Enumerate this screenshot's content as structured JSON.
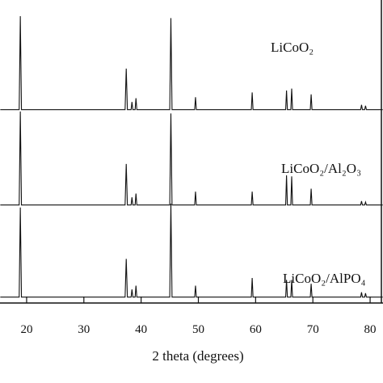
{
  "chart_data": {
    "type": "line",
    "xlabel": "2 theta (degrees)",
    "x": [
      15.4,
      18.7,
      18.9,
      19.1,
      37.2,
      37.4,
      37.6,
      38.25,
      38.4,
      38.55,
      38.95,
      39.1,
      39.25,
      45.0,
      45.2,
      45.4,
      49.35,
      49.5,
      49.65,
      59.25,
      59.4,
      59.55,
      65.25,
      65.4,
      65.55,
      66.15,
      66.3,
      66.45,
      69.55,
      69.7,
      69.85,
      78.35,
      78.5,
      78.65,
      79.05,
      79.2,
      79.35,
      82.2
    ],
    "series": [
      {
        "name": "LiCoO₂",
        "color": "#111111",
        "values": [
          2,
          2,
          100,
          2,
          2,
          45,
          2,
          2,
          10,
          2,
          2,
          14,
          2,
          2,
          98,
          2,
          2,
          15,
          2,
          2,
          20,
          2,
          2,
          22,
          2,
          2,
          24,
          2,
          2,
          18,
          2,
          2,
          7,
          2,
          2,
          6,
          2,
          2
        ]
      },
      {
        "name": "LiCoO₂/Al₂O₃",
        "color": "#111111",
        "values": [
          2,
          2,
          100,
          2,
          2,
          45,
          2,
          2,
          10,
          2,
          2,
          14,
          2,
          2,
          98,
          2,
          2,
          16,
          2,
          2,
          16,
          2,
          2,
          33,
          2,
          2,
          32,
          2,
          2,
          19,
          2,
          2,
          6,
          2,
          2,
          5,
          2,
          2
        ]
      },
      {
        "name": "LiCoO₂/AlPO₄",
        "color": "#111111",
        "values": [
          2,
          2,
          96,
          2,
          2,
          42,
          2,
          2,
          10,
          2,
          2,
          14,
          2,
          2,
          100,
          2,
          2,
          14,
          2,
          2,
          22,
          2,
          2,
          20,
          2,
          2,
          20,
          2,
          2,
          16,
          2,
          2,
          7,
          2,
          2,
          6,
          2,
          2
        ]
      }
    ],
    "xlim": [
      15.35,
      82.25
    ],
    "xticks": [
      20,
      30,
      40,
      50,
      60,
      70,
      80
    ],
    "ylim": [
      0,
      100
    ]
  }
}
